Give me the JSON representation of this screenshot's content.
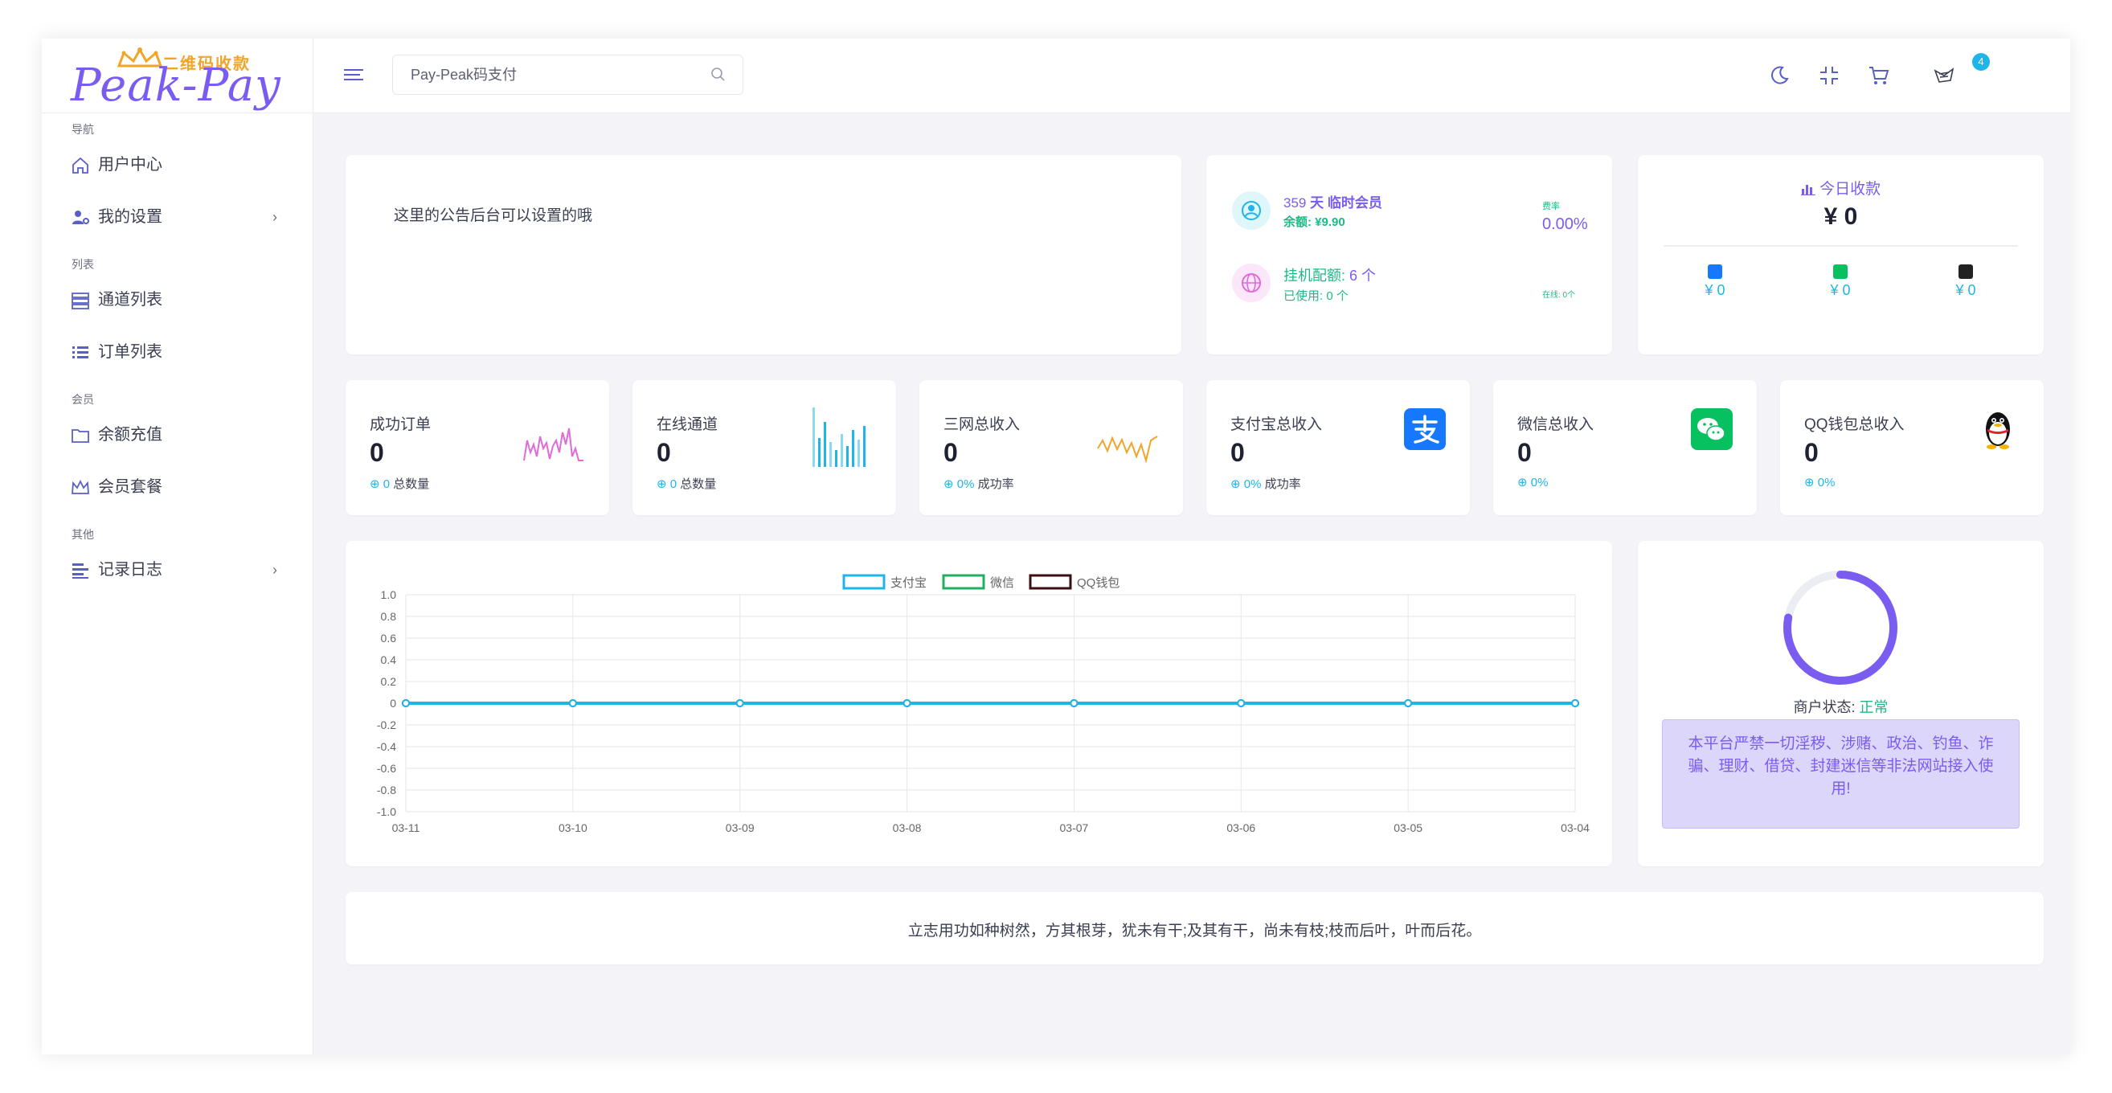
{
  "sidebar": {
    "logo_tag": "二维码收款",
    "logo_brand": "Peak-Pay",
    "sections": {
      "nav": "导航",
      "list": "列表",
      "member": "会员",
      "other": "其他"
    },
    "items": {
      "user_center": "用户中心",
      "my_settings": "我的设置",
      "channel_list": "通道列表",
      "order_list": "订单列表",
      "recharge": "余额充值",
      "membership": "会员套餐",
      "logs": "记录日志"
    }
  },
  "topbar": {
    "search_placeholder": "Pay-Peak码支付",
    "cart_count": "4"
  },
  "announcement": {
    "text": "这里的公告后台可以设置的哦"
  },
  "member": {
    "days": "359",
    "member_type": "天 临时会员",
    "balance_label": "余额:",
    "balance_value": "¥9.90",
    "rate_label": "费率",
    "rate_value": "0.00%",
    "quota_label": "挂机配额:",
    "quota_value": "6 个",
    "used_label": "已使用:",
    "used_value": "0 个",
    "online_label": "在线: 0个"
  },
  "today": {
    "title": "今日收款",
    "amount": "¥ 0",
    "alipay": "¥ 0",
    "wechat": "¥ 0",
    "qq": "¥ 0"
  },
  "stats": [
    {
      "title": "成功订单",
      "value": "0",
      "sub_value": "0",
      "sub_label": "总数量"
    },
    {
      "title": "在线通道",
      "value": "0",
      "sub_value": "0",
      "sub_label": "总数量"
    },
    {
      "title": "三网总收入",
      "value": "0",
      "sub_value": "0%",
      "sub_label": "成功率"
    },
    {
      "title": "支付宝总收入",
      "value": "0",
      "sub_value": "0%",
      "sub_label": "成功率"
    },
    {
      "title": "微信总收入",
      "value": "0",
      "sub_value": "0%",
      "sub_label": ""
    },
    {
      "title": "QQ钱包总收入",
      "value": "0",
      "sub_value": "0%",
      "sub_label": ""
    }
  ],
  "chart_data": {
    "type": "line",
    "categories": [
      "03-11",
      "03-10",
      "03-09",
      "03-08",
      "03-07",
      "03-06",
      "03-05",
      "03-04"
    ],
    "series": [
      {
        "name": "支付宝",
        "values": [
          0,
          0,
          0,
          0,
          0,
          0,
          0,
          0
        ],
        "color": "#1fb5e8"
      },
      {
        "name": "微信",
        "values": [
          0,
          0,
          0,
          0,
          0,
          0,
          0,
          0
        ],
        "color": "#20b060"
      },
      {
        "name": "QQ钱包",
        "values": [
          0,
          0,
          0,
          0,
          0,
          0,
          0,
          0
        ],
        "color": "#3a1010"
      }
    ],
    "ylim": [
      -1.0,
      1.0
    ],
    "yticks": [
      "1.0",
      "0.8",
      "0.6",
      "0.4",
      "0.2",
      "0",
      "-0.2",
      "-0.4",
      "-0.6",
      "-0.8",
      "-1.0"
    ],
    "grid": true,
    "legend": "top-center",
    "title": "",
    "xlabel": "",
    "ylabel": ""
  },
  "merchant": {
    "status_label": "商户状态:",
    "status_value": "正常",
    "progress": 0.78,
    "notice": "本平台严禁一切淫秽、涉赌、政治、钓鱼、诈骗、理财、借贷、封建迷信等非法网站接入使用!"
  },
  "quote": {
    "text": "立志用功如种树然，方其根芽，犹未有干;及其有干，尚未有枝;枝而后叶，叶而后花。"
  },
  "colors": {
    "primary": "#7a5cf0",
    "accent": "#1fb5e8",
    "success": "#20b888"
  }
}
